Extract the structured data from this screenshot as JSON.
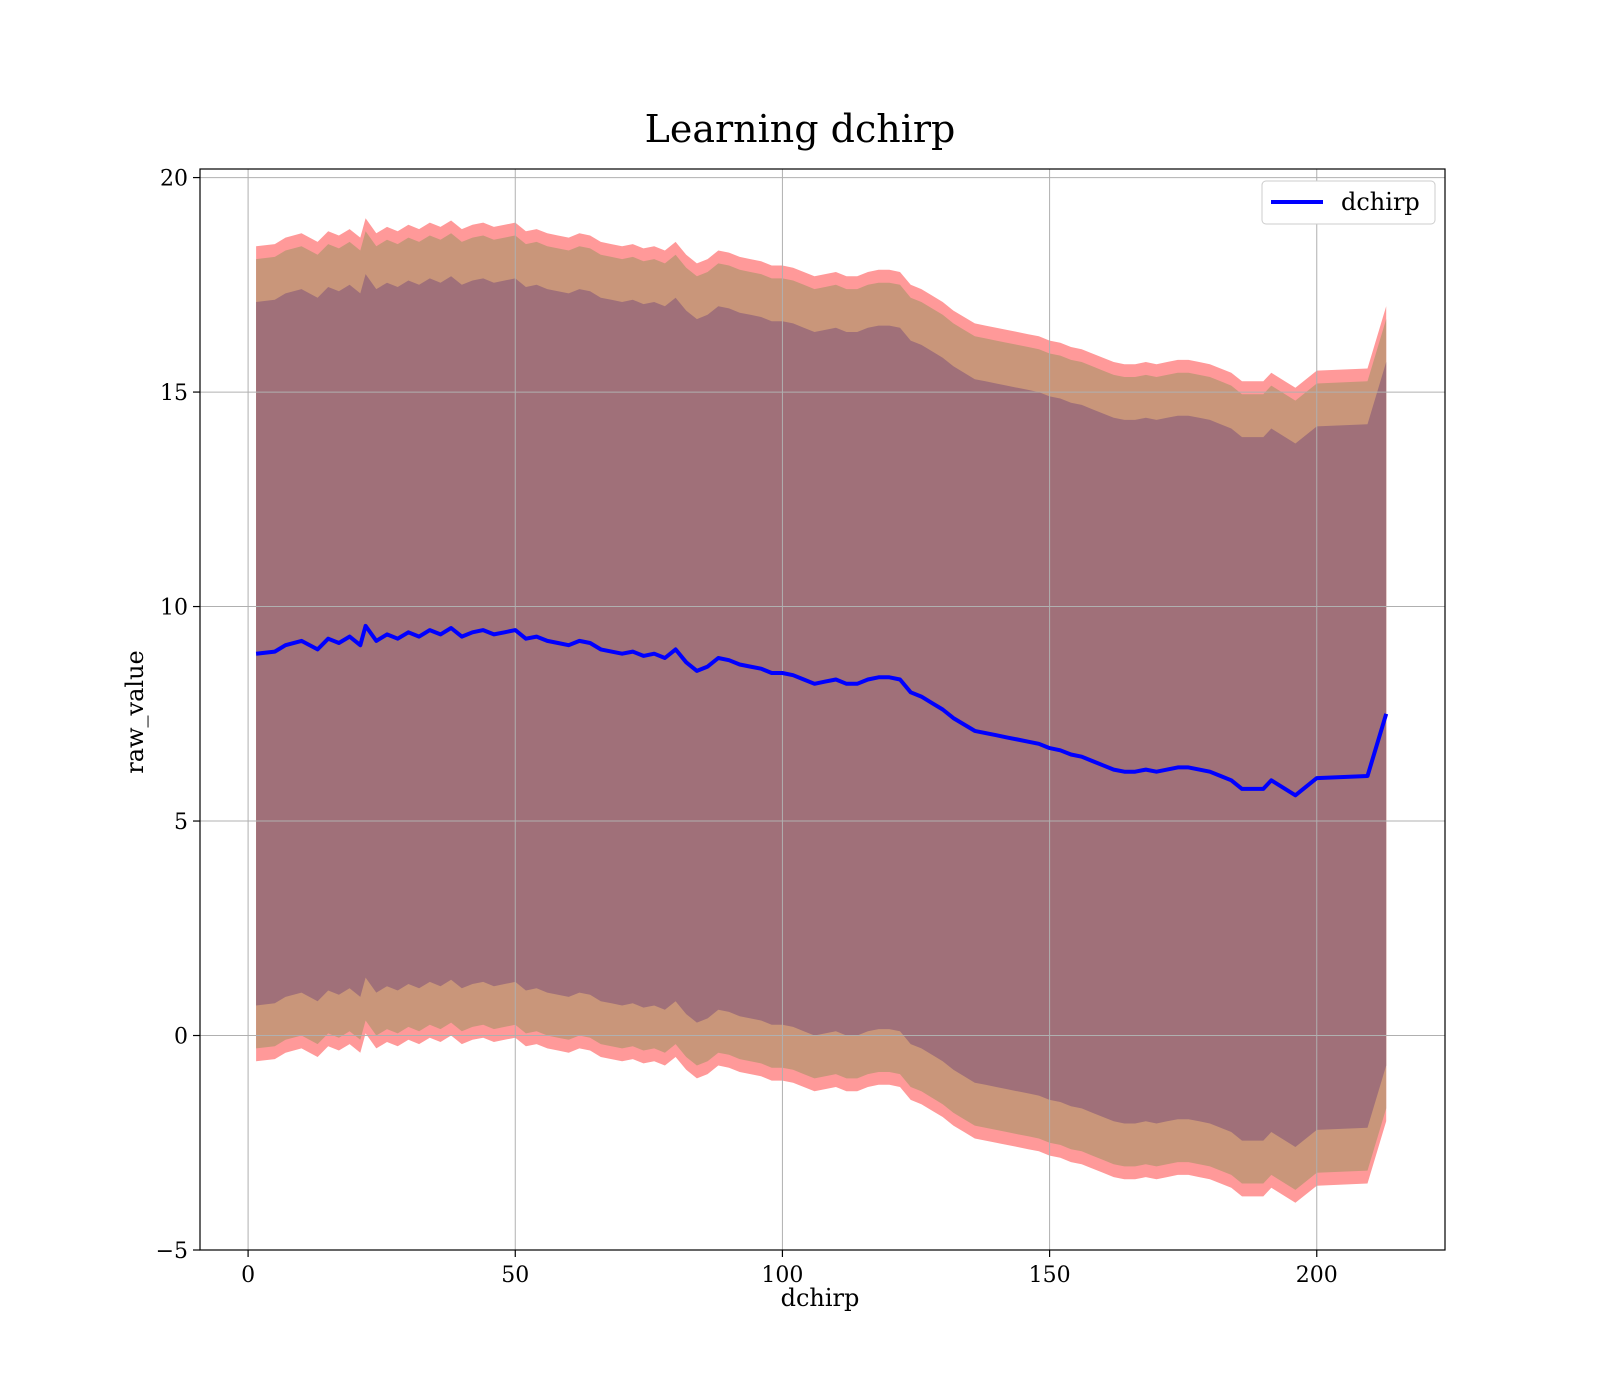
{
  "chart_data": {
    "type": "line",
    "title": "Learning dchirp",
    "xlabel": "dchirp",
    "ylabel": "raw_value",
    "xlim": [
      -9,
      224
    ],
    "ylim": [
      -5,
      20.2
    ],
    "xticks": [
      0,
      50,
      100,
      150,
      200
    ],
    "yticks": [
      -5,
      0,
      5,
      10,
      15,
      20
    ],
    "xtick_labels": [
      "0",
      "50",
      "100",
      "150",
      "200"
    ],
    "ytick_labels": [
      "−5",
      "0",
      "5",
      "10",
      "15",
      "20"
    ],
    "grid": true,
    "legend": {
      "placement": "top-right",
      "entries": [
        "dchirp"
      ]
    },
    "colors": {
      "line": "#0000ff",
      "band_outer": "#ff9999",
      "band_middle": "#c9967a",
      "band_inner": "#a07079"
    },
    "band_offsets": {
      "outer": 9.5,
      "middle": 9.2,
      "inner": 8.2
    },
    "series": [
      {
        "name": "dchirp",
        "x": [
          1.5,
          5,
          7,
          10,
          13,
          15,
          17,
          19,
          21,
          22,
          24,
          26,
          28,
          30,
          32,
          34,
          36,
          38,
          40,
          42,
          44,
          46,
          48,
          50,
          52,
          54,
          56,
          58,
          60,
          62,
          64,
          66,
          68,
          70,
          72,
          74,
          76,
          78,
          80,
          82,
          84,
          86,
          88,
          90,
          92,
          94,
          96,
          98,
          100,
          102,
          104,
          106,
          108,
          110,
          112,
          114,
          116,
          118,
          120,
          122,
          124,
          126,
          128,
          130,
          132,
          134,
          136,
          138,
          140,
          142,
          144,
          146,
          148,
          150,
          152,
          154,
          156,
          158,
          160,
          162,
          164,
          166,
          168,
          170,
          172,
          174,
          176,
          178,
          180,
          182,
          184,
          186,
          188,
          190,
          191.5,
          196,
          200,
          209.5,
          213
        ],
        "y": [
          8.9,
          8.95,
          9.1,
          9.2,
          9.0,
          9.25,
          9.15,
          9.3,
          9.1,
          9.55,
          9.2,
          9.35,
          9.25,
          9.4,
          9.3,
          9.45,
          9.35,
          9.5,
          9.3,
          9.4,
          9.45,
          9.35,
          9.4,
          9.45,
          9.25,
          9.3,
          9.2,
          9.15,
          9.1,
          9.2,
          9.15,
          9.0,
          8.95,
          8.9,
          8.95,
          8.85,
          8.9,
          8.8,
          9.0,
          8.7,
          8.5,
          8.6,
          8.8,
          8.75,
          8.65,
          8.6,
          8.55,
          8.45,
          8.45,
          8.4,
          8.3,
          8.2,
          8.25,
          8.3,
          8.2,
          8.2,
          8.3,
          8.35,
          8.35,
          8.3,
          8.0,
          7.9,
          7.75,
          7.6,
          7.4,
          7.25,
          7.1,
          7.05,
          7.0,
          6.95,
          6.9,
          6.85,
          6.8,
          6.7,
          6.65,
          6.55,
          6.5,
          6.4,
          6.3,
          6.2,
          6.15,
          6.15,
          6.2,
          6.15,
          6.2,
          6.25,
          6.25,
          6.2,
          6.15,
          6.05,
          5.95,
          5.75,
          5.75,
          5.75,
          5.95,
          5.6,
          6.0,
          6.05,
          7.5
        ]
      }
    ]
  }
}
